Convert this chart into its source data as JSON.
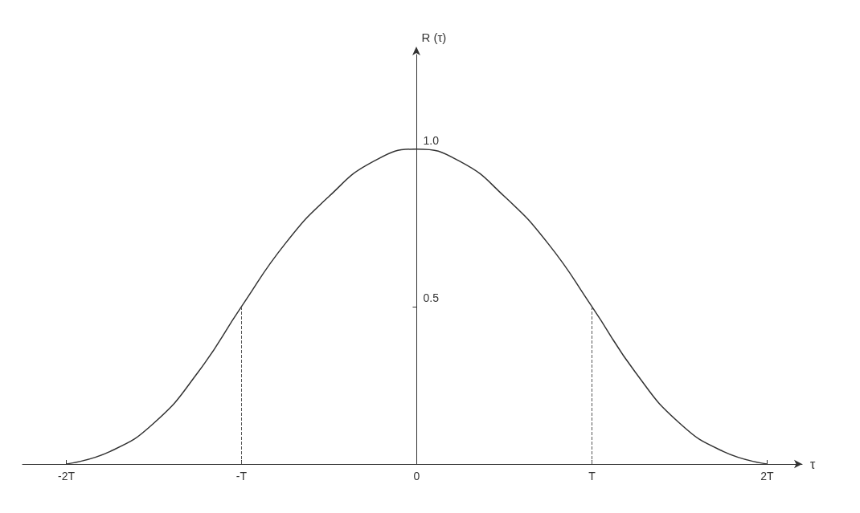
{
  "chart_data": {
    "type": "line",
    "xlabel": "τ",
    "ylabel": "R (τ)",
    "x": [
      -2,
      -1.75,
      -1.5,
      -1.25,
      -1,
      -0.75,
      -0.5,
      -0.25,
      0,
      0.25,
      0.5,
      0.75,
      1,
      1.25,
      1.5,
      1.75,
      2
    ],
    "series": [
      {
        "color": "#333333",
        "values": [
          0,
          0.04,
          0.13,
          0.29,
          0.5,
          0.7,
          0.85,
          0.96,
          1,
          0.96,
          0.85,
          0.7,
          0.5,
          0.29,
          0.13,
          0.04,
          0
        ]
      }
    ],
    "xlim": [
      -2.25,
      2.2
    ],
    "ylim": [
      0,
      1.3
    ],
    "xticks": [
      {
        "value": -2,
        "label": "-2T"
      },
      {
        "value": -1,
        "label": "-T"
      },
      0,
      {
        "value": 1,
        "label": "T"
      },
      {
        "value": 2,
        "label": "2T"
      }
    ],
    "yticks": [
      0.5,
      {
        "value": 1,
        "label": "1.0"
      }
    ],
    "ref_lines": [
      {
        "axis": "x",
        "value": -1,
        "line_style": "dashed",
        "color": "#555555"
      },
      {
        "axis": "x",
        "value": 1,
        "line_style": "dashed",
        "color": "#555555"
      }
    ],
    "grid": false,
    "marker": "none",
    "line_style": "solid"
  }
}
